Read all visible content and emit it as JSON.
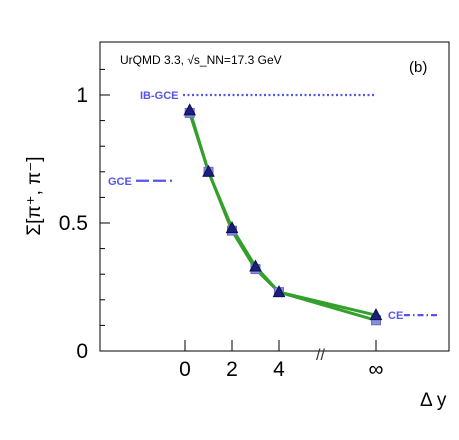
{
  "chart_data": {
    "type": "line",
    "title": "UrQMD 3.3, √s_NN=17.3 GeV",
    "panel_label": "(b)",
    "xlabel": "Δ y",
    "ylabel": "Σ[π⁺, π⁻]",
    "ylim": [
      0,
      1.2
    ],
    "y_ticks": [
      0,
      0.5,
      1
    ],
    "y_tick_labels": [
      "0",
      "0.5",
      "1"
    ],
    "x_tick_labels": [
      "0",
      "2",
      "4",
      "∞"
    ],
    "axis_break_label": "//",
    "grid": false,
    "series": [
      {
        "marker": "triangle",
        "color": "#1a1f7a",
        "x": [
          0.2,
          1.0,
          2.0,
          3.0,
          4.0,
          "∞"
        ],
        "values": [
          0.94,
          0.7,
          0.48,
          0.33,
          0.23,
          0.14
        ]
      },
      {
        "marker": "square",
        "color": "#8a8ed8",
        "x": [
          0.2,
          1.0,
          2.0,
          3.0,
          4.0,
          "∞"
        ],
        "values": [
          0.93,
          0.7,
          0.47,
          0.32,
          0.23,
          0.12
        ]
      }
    ],
    "reference_lines": [
      {
        "label": "IB-GCE",
        "value": 1.0,
        "style": "dotted",
        "color": "#5555ee"
      },
      {
        "label": "GCE",
        "value": 0.665,
        "style": "dashed",
        "color": "#5555ee"
      },
      {
        "label": "CE",
        "value": 0.14,
        "style": "dash-dot",
        "color": "#5555ee"
      }
    ]
  }
}
